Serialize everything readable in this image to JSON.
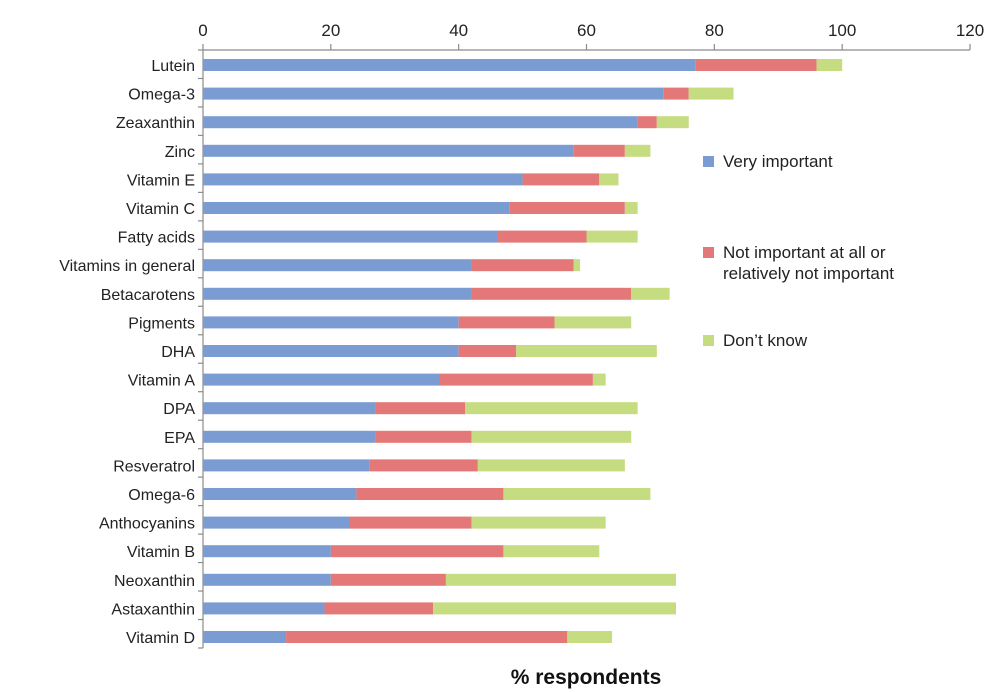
{
  "chart_data": {
    "type": "bar",
    "orientation": "horizontal",
    "stacked": true,
    "xlabel": "% respondents",
    "ylabel": "",
    "xlim": [
      0,
      120
    ],
    "xticks": [
      "0",
      "20",
      "40",
      "60",
      "80",
      "100",
      "120"
    ],
    "grid": false,
    "legend_position": "right",
    "categories": [
      "Lutein",
      "Omega-3",
      "Zeaxanthin",
      "Zinc",
      "Vitamin E",
      "Vitamin C",
      "Fatty acids",
      "Vitamins in general",
      "Betacarotens",
      "Pigments",
      "DHA",
      "Vitamin A",
      "DPA",
      "EPA",
      "Resveratrol",
      "Omega-6",
      "Anthocyanins",
      "Vitamin B",
      "Neoxanthin",
      "Astaxanthin",
      "Vitamin D"
    ],
    "series": [
      {
        "name": "Very important",
        "color": "#7b9bd3",
        "values": [
          77,
          72,
          68,
          58,
          50,
          48,
          46,
          42,
          42,
          40,
          40,
          37,
          27,
          27,
          26,
          24,
          23,
          20,
          20,
          19,
          13
        ]
      },
      {
        "name": "Not important at all or relatively not important",
        "color": "#e47777",
        "values": [
          19,
          4,
          3,
          8,
          12,
          18,
          14,
          16,
          25,
          15,
          9,
          24,
          14,
          15,
          17,
          23,
          19,
          27,
          18,
          17,
          44
        ]
      },
      {
        "name": "Don’t know",
        "color": "#c5dc80",
        "values": [
          4,
          7,
          5,
          4,
          3,
          2,
          8,
          1,
          6,
          12,
          22,
          2,
          27,
          25,
          23,
          23,
          21,
          15,
          36,
          38,
          7
        ]
      }
    ]
  }
}
